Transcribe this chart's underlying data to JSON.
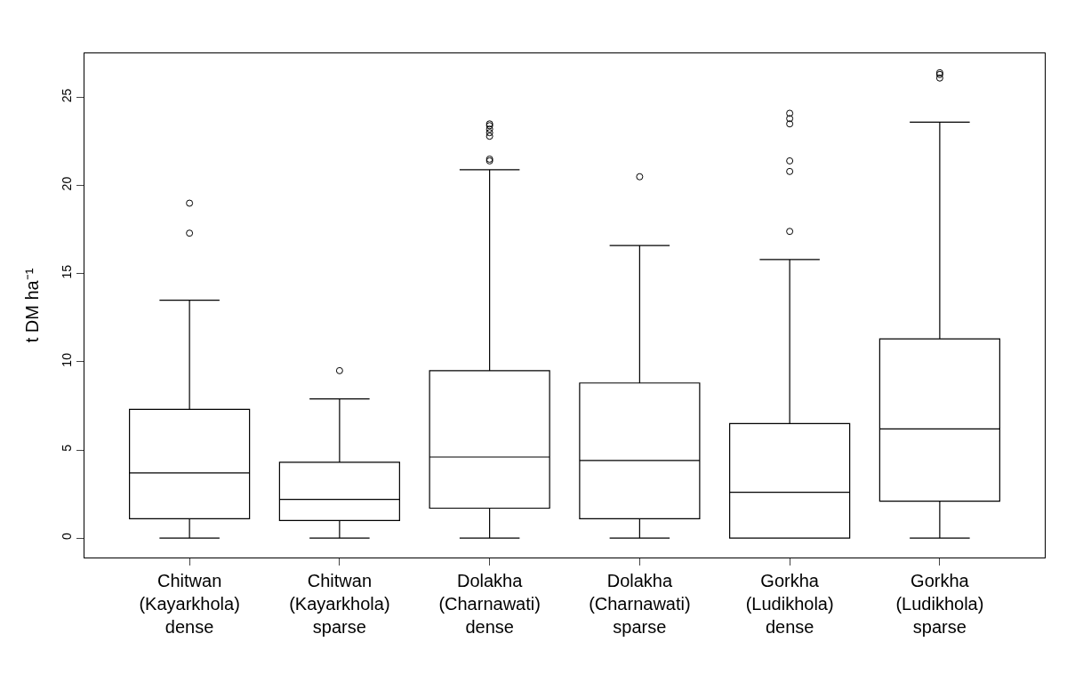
{
  "chart_data": {
    "type": "box",
    "ylabel": "t DM ha⁻¹",
    "categories": [
      "Chitwan\n(Kayarkhola)\ndense",
      "Chitwan\n(Kayarkhola)\nsparse",
      "Dolakha\n(Charnawati)\ndense",
      "Dolakha\n(Charnawati)\nsparse",
      "Gorkha\n(Ludikhola)\ndense",
      "Gorkha\n(Ludikhola)\nsparse"
    ],
    "boxes": [
      {
        "low": 0,
        "q1": 1.1,
        "median": 3.7,
        "q3": 7.3,
        "high": 13.5,
        "outliers": [
          17.3,
          19.0
        ]
      },
      {
        "low": 0,
        "q1": 1.0,
        "median": 2.2,
        "q3": 4.3,
        "high": 7.9,
        "outliers": [
          9.5
        ]
      },
      {
        "low": 0,
        "q1": 1.7,
        "median": 4.6,
        "q3": 9.5,
        "high": 20.9,
        "outliers": [
          21.4,
          21.5,
          22.8,
          23.0,
          23.2,
          23.4,
          23.5
        ]
      },
      {
        "low": 0,
        "q1": 1.1,
        "median": 4.4,
        "q3": 8.8,
        "high": 16.6,
        "outliers": [
          20.5
        ]
      },
      {
        "low": 0,
        "q1": 0,
        "median": 2.6,
        "q3": 6.5,
        "high": 15.8,
        "outliers": [
          17.4,
          20.8,
          21.4,
          23.5,
          23.8,
          24.1
        ]
      },
      {
        "low": 0,
        "q1": 2.1,
        "median": 6.2,
        "q3": 11.3,
        "high": 23.6,
        "outliers": [
          26.1,
          26.3,
          26.4
        ]
      }
    ],
    "color": "#000000",
    "marker": "circle",
    "ylim": [
      -1.1,
      27.5
    ],
    "yticks": [
      0,
      5,
      10,
      15,
      20,
      25
    ]
  }
}
